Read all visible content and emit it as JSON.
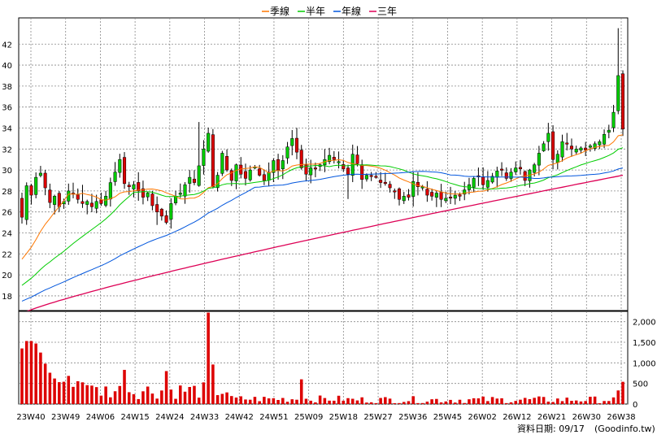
{
  "chart_data": {
    "type": "candlestick",
    "legend": [
      {
        "name": "季線",
        "color": "#ff7700"
      },
      {
        "name": "半年",
        "color": "#00cc00"
      },
      {
        "name": "年線",
        "color": "#0055dd"
      },
      {
        "name": "三年",
        "color": "#dd0055"
      }
    ],
    "colors": {
      "up": "#00cc00",
      "down": "#dd0000",
      "volume": "#dd0000",
      "grid": "#888888"
    },
    "price_axis": {
      "ticks": [
        18,
        20,
        22,
        24,
        26,
        28,
        30,
        32,
        34,
        36,
        38,
        40,
        42
      ],
      "ylim": [
        16.6,
        44.5
      ]
    },
    "volume_axis": {
      "ticks": [
        "0",
        "500",
        "1,000",
        "1,500",
        "2,000"
      ],
      "values": [
        0,
        500,
        1000,
        1500,
        2000
      ],
      "ylim": [
        0,
        2250
      ]
    },
    "x_ticks": [
      "23W40",
      "23W49",
      "24W06",
      "24W15",
      "24W24",
      "24W33",
      "24W42",
      "24W51",
      "25W09",
      "25W18",
      "25W27",
      "25W36",
      "25W45",
      "26W02",
      "26W12",
      "26W21",
      "26W30",
      "26W38"
    ],
    "grid": true,
    "legend_position": "top-center",
    "series_estimated": {
      "candles_close": [
        25.5,
        28.5,
        27.6,
        29.3,
        29.7,
        28.3,
        26.9,
        27.5,
        26.5,
        27.0,
        28.0,
        27.8,
        27.2,
        26.8,
        27.0,
        26.5,
        27.0,
        26.8,
        27.5,
        28.8,
        29.8,
        31.0,
        28.7,
        28.4,
        28.6,
        28.0,
        27.4,
        27.8,
        26.6,
        26.0,
        25.6,
        25.0,
        26.8,
        27.5,
        27.8,
        28.6,
        29.3,
        28.8,
        30.4,
        32.0,
        33.5,
        28.4,
        29.5,
        31.6,
        30.0,
        29.0,
        30.5,
        29.6,
        29.2,
        30.0,
        30.3,
        29.5,
        29.0,
        29.8,
        30.9,
        30.0,
        30.9,
        32.2,
        33.0,
        31.7,
        30.2,
        29.6,
        30.2,
        30.2,
        30.5,
        31.0,
        31.4,
        31.0,
        30.8,
        30.1,
        29.6,
        31.5,
        30.6,
        29.1,
        29.5,
        29.4,
        29.3,
        28.8,
        28.7,
        28.3,
        28.0,
        27.2,
        27.5,
        27.4,
        28.9,
        28.4,
        28.4,
        27.6,
        27.5,
        27.8,
        27.2,
        27.3,
        27.4,
        27.6,
        27.5,
        28.1,
        28.6,
        29.2,
        29.4,
        28.6,
        29.0,
        29.4,
        29.9,
        30.0,
        29.2,
        29.8,
        30.2,
        30.1,
        29.0,
        30.0,
        30.5,
        31.6,
        32.5,
        33.5,
        31.0,
        31.5,
        32.7,
        32.5,
        32.0,
        32.0,
        32.1,
        31.9,
        32.3,
        32.5,
        32.7,
        33.4,
        33.8,
        35.5,
        39.0,
        33.9
      ]
    }
  },
  "footer": {
    "date_label": "資料日期: 09/17",
    "source": "(Goodinfo.tw)"
  }
}
